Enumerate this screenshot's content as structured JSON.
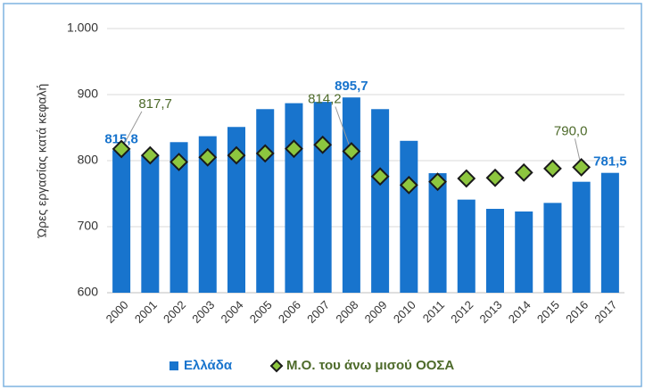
{
  "chart_data": {
    "type": "combo",
    "y_label": "Ώρες εργασίας κατά κεφαλή",
    "categories": [
      "2000",
      "2001",
      "2002",
      "2003",
      "2004",
      "2005",
      "2006",
      "2007",
      "2008",
      "2009",
      "2010",
      "2011",
      "2012",
      "2013",
      "2014",
      "2015",
      "2016",
      "2017"
    ],
    "series": [
      {
        "name": "Ελλάδα",
        "type": "bar",
        "color": "#1874cd",
        "values": [
          815.8,
          808,
          828,
          837,
          851,
          878,
          887,
          889,
          895.7,
          878,
          830,
          781,
          741,
          727,
          723,
          736,
          768,
          781.5
        ],
        "value_labels": [
          "815,8",
          null,
          null,
          null,
          null,
          null,
          null,
          null,
          "895,7",
          null,
          null,
          null,
          null,
          null,
          null,
          null,
          null,
          "781,5"
        ]
      },
      {
        "name": "Μ.Ο. του άνω μισού ΟΟΣΑ",
        "type": "marker",
        "color": "#8dc63f",
        "values": [
          817.7,
          808,
          798,
          805,
          808,
          811,
          818,
          824,
          814.2,
          776,
          763,
          768,
          773,
          774,
          782,
          788,
          790.0,
          null
        ],
        "value_labels": [
          "817,7",
          null,
          null,
          null,
          null,
          null,
          null,
          null,
          "814,2",
          null,
          null,
          null,
          null,
          null,
          null,
          null,
          "790,0",
          null
        ]
      }
    ],
    "ylim": [
      600,
      1000
    ],
    "yticks": [
      600,
      700,
      800,
      900,
      {
        "value": 1000,
        "label": "1.000"
      }
    ],
    "grid": true,
    "legend": "bottom"
  }
}
